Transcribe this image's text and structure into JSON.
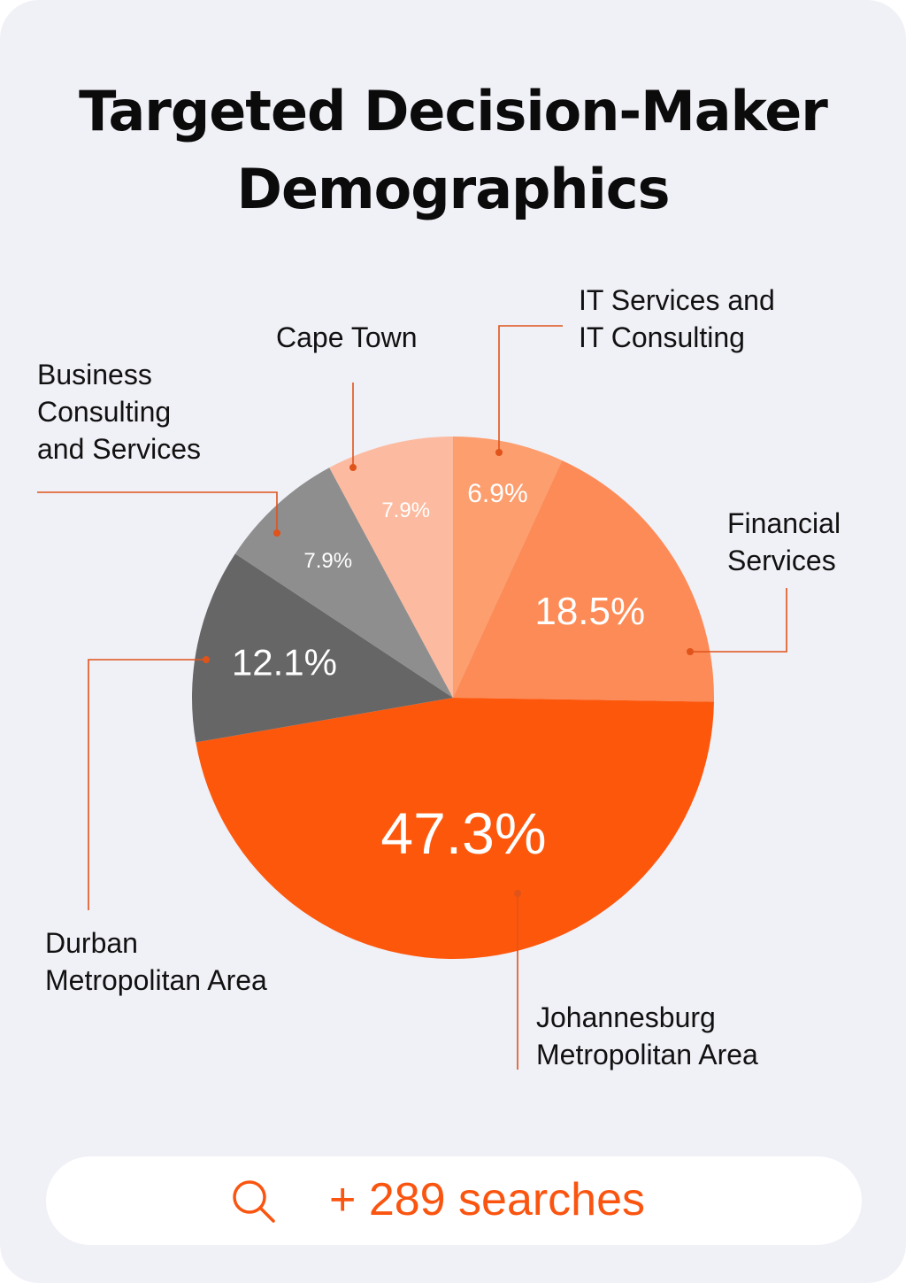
{
  "header": {
    "title_line1": "Targeted Decision-Maker",
    "title_line2": "Demographics"
  },
  "chart_data": {
    "type": "pie",
    "title": "Targeted Decision-Maker Demographics",
    "start": "12 o'clock, clockwise",
    "slices": [
      {
        "label": "IT Services and IT Consulting",
        "label_lines": [
          "IT Services and",
          "IT Consulting"
        ],
        "value": 6.9,
        "value_label": "6.9%",
        "color": "#fc9e6e"
      },
      {
        "label": "Financial Services",
        "label_lines": [
          "Financial",
          "Services"
        ],
        "value": 18.5,
        "value_label": "18.5%",
        "color": "#fd8b57"
      },
      {
        "label": "Johannesburg Metropolitan Area",
        "label_lines": [
          "Johannesburg",
          "Metropolitan Area"
        ],
        "value": 47.3,
        "value_label": "47.3%",
        "color": "#fd570c"
      },
      {
        "label": "Durban Metropolitan Area",
        "label_lines": [
          "Durban",
          "Metropolitan Area"
        ],
        "value": 12.1,
        "value_label": "12.1%",
        "color": "#666666"
      },
      {
        "label": "Business Consulting and Services",
        "label_lines": [
          "Business",
          "Consulting",
          "and Services"
        ],
        "value": 7.9,
        "value_label": "7.9%",
        "color": "#8e8e8e"
      },
      {
        "label": "Cape Town",
        "label_lines": [
          "Cape Town"
        ],
        "value": 7.9,
        "value_label": "7.9%",
        "color": "#fcbba0"
      }
    ],
    "leader_color": "#e0531a"
  },
  "footer": {
    "search_icon": "search-icon",
    "search_text": "+ 289 searches",
    "accent": "#fa5510"
  }
}
